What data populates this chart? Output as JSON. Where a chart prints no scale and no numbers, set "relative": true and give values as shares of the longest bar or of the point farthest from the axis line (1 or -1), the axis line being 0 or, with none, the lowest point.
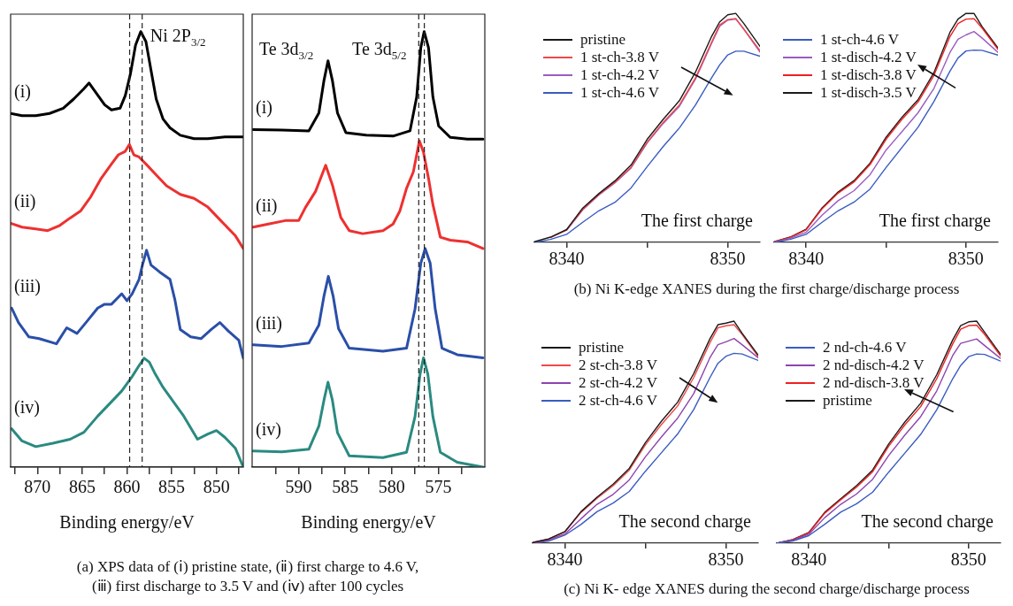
{
  "chart_data": [
    {
      "type": "line",
      "relative": true,
      "legend": false,
      "marker": "none",
      "xlabel": "Binding energy/eV",
      "xlim": [
        873,
        847
      ],
      "xticks": [
        {
          "value": 872.5,
          "label": null
        },
        870,
        {
          "value": 867.5,
          "label": null
        },
        865,
        {
          "value": 862.5,
          "label": null
        },
        860,
        {
          "value": 857.5,
          "label": null
        },
        855,
        {
          "value": 852.5,
          "label": null
        },
        850,
        {
          "value": 847.5,
          "label": null
        }
      ],
      "ref_lines": [
        {
          "axis": "x",
          "value": 859.7,
          "line_style": "dashed"
        },
        {
          "axis": "x",
          "value": 858.3,
          "line_style": "dashed"
        }
      ],
      "annotations": [
        "Ni 2P$_{3/2}$",
        "(a) XPS data of (ⅰ) pristine state, (ⅱ) first charge to 4.6 V,\n(ⅲ) first discharge to 3.5 V and (ⅳ) after 100 cycles"
      ],
      "series": [
        {
          "name": "(i)",
          "color": "#000000",
          "x": [
            873,
            871.73,
            870.19,
            868.65,
            867.12,
            865.96,
            864.81,
            864.23,
            863.65,
            862.5,
            861.73,
            860.77,
            860.19,
            859.62,
            859.04,
            858.46,
            857.88,
            857.31,
            856.73,
            855.96,
            855.19,
            854.04,
            852.5,
            850.96,
            849.04,
            847
          ],
          "values": [
            0.812,
            0.807,
            0.807,
            0.812,
            0.824,
            0.845,
            0.869,
            0.882,
            0.865,
            0.832,
            0.82,
            0.824,
            0.853,
            0.902,
            0.969,
            1,
            0.977,
            0.911,
            0.845,
            0.799,
            0.779,
            0.762,
            0.754,
            0.754,
            0.758,
            0.758
          ]
        },
        {
          "name": "(ii)",
          "color": "#ee3030",
          "x": [
            873,
            871.73,
            870.19,
            868.85,
            867.5,
            866.35,
            865.19,
            864.04,
            862.88,
            861.73,
            860.96,
            860.19,
            859.73,
            859.23,
            858.65,
            857.88,
            856.73,
            855.58,
            854.04,
            852.5,
            850.96,
            849.42,
            847.88,
            847
          ],
          "values": [
            0.56,
            0.551,
            0.547,
            0.543,
            0.555,
            0.572,
            0.588,
            0.621,
            0.663,
            0.696,
            0.717,
            0.725,
            0.741,
            0.717,
            0.712,
            0.696,
            0.671,
            0.646,
            0.626,
            0.617,
            0.597,
            0.564,
            0.531,
            0.502
          ]
        },
        {
          "name": "(iii)",
          "color": "#2a4fa8",
          "x": [
            872.88,
            872.12,
            870.96,
            869.81,
            867.88,
            866.73,
            865.58,
            864.42,
            863.27,
            862.5,
            861.73,
            860.58,
            860,
            859.42,
            858.65,
            858.27,
            857.81,
            857.31,
            856.35,
            855.19,
            854.62,
            854.04,
            852.88,
            851.73,
            850.58,
            849.62,
            848.65,
            847.5,
            847
          ],
          "values": [
            0.365,
            0.332,
            0.299,
            0.295,
            0.283,
            0.32,
            0.307,
            0.336,
            0.365,
            0.374,
            0.374,
            0.398,
            0.382,
            0.398,
            0.431,
            0.464,
            0.498,
            0.464,
            0.448,
            0.431,
            0.382,
            0.316,
            0.299,
            0.295,
            0.316,
            0.332,
            0.312,
            0.291,
            0.25
          ]
        },
        {
          "name": "(iv)",
          "color": "#2a8a80",
          "x": [
            872.88,
            871.73,
            870.19,
            868.27,
            866.35,
            864.81,
            863.27,
            861.73,
            860.58,
            859.42,
            858.65,
            858.08,
            857.5,
            856.92,
            855.96,
            854.81,
            853.65,
            852.12,
            850.96,
            850,
            849.04,
            847.88,
            847
          ],
          "values": [
            0.088,
            0.06,
            0.047,
            0.055,
            0.064,
            0.08,
            0.117,
            0.15,
            0.175,
            0.208,
            0.233,
            0.25,
            0.241,
            0.217,
            0.183,
            0.15,
            0.117,
            0.064,
            0.076,
            0.084,
            0.068,
            0.043,
            0
          ]
        }
      ]
    },
    {
      "type": "line",
      "relative": true,
      "legend": false,
      "marker": "none",
      "xlabel": "Binding energy/eV",
      "xlim": [
        595,
        570
      ],
      "xticks": [
        {
          "value": 592.5,
          "label": null
        },
        590,
        {
          "value": 587.5,
          "label": null
        },
        585,
        {
          "value": 582.5,
          "label": null
        },
        580,
        {
          "value": 577.5,
          "label": null
        },
        575,
        {
          "value": 572.5,
          "label": null
        }
      ],
      "ref_lines": [
        {
          "axis": "x",
          "value": 577.1,
          "line_style": "dashed"
        },
        {
          "axis": "x",
          "value": 576.5,
          "line_style": "dashed"
        }
      ],
      "annotations": [
        "Te 3d$_{3/2}$",
        "Te 3d$_{5/2}$"
      ],
      "series": [
        {
          "name": "(i)",
          "color": "#000000",
          "x": [
            594.89,
            591.81,
            588.91,
            587.83,
            587.28,
            586.85,
            586.38,
            585.83,
            584.93,
            582.75,
            579.86,
            578.04,
            577.32,
            576.88,
            576.52,
            576.05,
            575.58,
            574.96,
            573.7,
            571.88,
            570.2
          ],
          "values": [
            0.775,
            0.774,
            0.772,
            0.813,
            0.888,
            0.933,
            0.888,
            0.813,
            0.768,
            0.762,
            0.76,
            0.772,
            0.85,
            0.963,
            1,
            0.963,
            0.85,
            0.783,
            0.757,
            0.753,
            0.753
          ]
        },
        {
          "name": "(ii)",
          "color": "#ee3030",
          "x": [
            594.89,
            593.26,
            591.45,
            590,
            589.28,
            588.19,
            587.1,
            586.38,
            585.47,
            584.57,
            583.12,
            580.94,
            579.86,
            579.13,
            578.41,
            577.68,
            577.03,
            576.59,
            576.05,
            575.58,
            574.78,
            573.7,
            571.88,
            570.2
          ],
          "values": [
            0.551,
            0.558,
            0.566,
            0.566,
            0.596,
            0.633,
            0.693,
            0.648,
            0.573,
            0.543,
            0.536,
            0.543,
            0.558,
            0.588,
            0.64,
            0.678,
            0.749,
            0.723,
            0.663,
            0.603,
            0.528,
            0.521,
            0.517,
            0.502
          ]
        },
        {
          "name": "(iii)",
          "color": "#2a4fa8",
          "x": [
            594.89,
            591.81,
            588.91,
            587.83,
            587.28,
            586.81,
            586.3,
            585.72,
            584.57,
            580.94,
            578.41,
            577.5,
            576.88,
            576.41,
            575.87,
            575.33,
            574.6,
            572.97,
            570.2
          ],
          "values": [
            0.281,
            0.277,
            0.285,
            0.326,
            0.393,
            0.438,
            0.393,
            0.318,
            0.273,
            0.266,
            0.273,
            0.363,
            0.468,
            0.502,
            0.468,
            0.363,
            0.273,
            0.258,
            0.251
          ]
        },
        {
          "name": "(iv)",
          "color": "#2a8a80",
          "x": [
            594.89,
            591.81,
            588.91,
            587.83,
            587.28,
            586.85,
            586.38,
            585.83,
            584.57,
            580.94,
            578.41,
            577.5,
            576.96,
            576.59,
            576.12,
            575.58,
            574.78,
            572.97,
            570.2
          ],
          "values": [
            0.037,
            0.035,
            0.041,
            0.094,
            0.154,
            0.195,
            0.154,
            0.079,
            0.026,
            0.022,
            0.034,
            0.116,
            0.213,
            0.251,
            0.213,
            0.116,
            0.034,
            0.011,
            0
          ]
        }
      ]
    },
    {
      "type": "line",
      "relative": true,
      "legend": "top left",
      "marker": "none",
      "xlim": [
        8338,
        8352
      ],
      "xticks": [
        8340,
        {
          "value": 8345,
          "label": null
        },
        8350
      ],
      "x": [
        8338,
        8339,
        8340,
        8341,
        8342,
        8343,
        8344,
        8345,
        8346,
        8347,
        8348,
        8349,
        8349.5,
        8350,
        8350.5,
        8351,
        8352
      ],
      "annotations": [
        "The first charge",
        "(b) Ni K-edge XANES during the first charge/discharge process"
      ],
      "series": [
        {
          "name": "pristine",
          "color": "#1a1a1a",
          "values": [
            0.003,
            0.023,
            0.056,
            0.15,
            0.213,
            0.269,
            0.338,
            0.45,
            0.538,
            0.619,
            0.744,
            0.9,
            0.963,
            0.994,
            1,
            0.956,
            0.856
          ]
        },
        {
          "name": "1 st-ch-3.8 V",
          "color": "#f04848",
          "values": [
            null,
            0.021,
            0.054,
            0.144,
            0.209,
            0.263,
            0.328,
            0.438,
            0.525,
            0.6,
            0.719,
            0.875,
            0.95,
            0.973,
            0.978,
            0.931,
            0.838
          ]
        },
        {
          "name": "1 st-ch-4.2 V",
          "color": "#9b5cc0",
          "values": [
            null,
            null,
            0.053,
            0.142,
            0.207,
            0.26,
            0.325,
            0.434,
            0.52,
            0.594,
            0.713,
            0.869,
            0.944,
            0.971,
            0.975,
            0.931,
            0.831
          ]
        },
        {
          "name": "1 st-ch-4.6 V",
          "color": "#3a5cc0",
          "values": [
            0,
            0.013,
            0.035,
            0.088,
            0.138,
            0.175,
            0.238,
            0.331,
            0.419,
            0.5,
            0.6,
            0.719,
            0.775,
            0.819,
            0.835,
            0.835,
            0.813
          ]
        }
      ]
    },
    {
      "type": "line",
      "relative": true,
      "legend": "top left",
      "marker": "none",
      "xlim": [
        8338,
        8352
      ],
      "xticks": [
        8340,
        {
          "value": 8345,
          "label": null
        },
        8350
      ],
      "x": [
        8338,
        8339,
        8340,
        8341,
        8342,
        8343,
        8344,
        8345,
        8346,
        8347,
        8348,
        8349,
        8349.5,
        8350,
        8350.5,
        8351,
        8352
      ],
      "annotations": [
        "The first charge"
      ],
      "series": [
        {
          "name": "1 st-ch-4.6 V",
          "color": "#3a5cc0",
          "values": [
            0,
            0.013,
            0.035,
            0.088,
            0.138,
            0.176,
            0.233,
            0.327,
            0.415,
            0.503,
            0.616,
            0.748,
            0.805,
            0.836,
            0.84,
            0.839,
            0.818
          ]
        },
        {
          "name": "1 st-disch-4.2 V",
          "color": "#9b5cc0",
          "values": [
            0,
            0.018,
            0.044,
            0.119,
            0.182,
            0.226,
            0.296,
            0.403,
            0.484,
            0.566,
            0.673,
            0.83,
            0.887,
            0.906,
            0.921,
            0.893,
            0.83
          ]
        },
        {
          "name": "1 st-disch-3.8 V",
          "color": "#f02020",
          "values": [
            0.003,
            0.022,
            0.055,
            0.147,
            0.215,
            0.264,
            0.34,
            0.45,
            0.538,
            0.613,
            0.73,
            0.899,
            0.956,
            0.975,
            0.977,
            0.937,
            0.843
          ]
        },
        {
          "name": "1 st-disch-3.5 V",
          "color": "#1a1a1a",
          "values": [
            0.003,
            0.023,
            0.057,
            0.151,
            0.22,
            0.27,
            0.346,
            0.459,
            0.547,
            0.623,
            0.742,
            0.918,
            0.975,
            1,
            1,
            0.943,
            0.849
          ]
        }
      ]
    },
    {
      "type": "line",
      "relative": true,
      "legend": "top left",
      "marker": "none",
      "xlim": [
        8338,
        8352
      ],
      "xticks": [
        8340,
        {
          "value": 8345,
          "label": null
        },
        8350
      ],
      "x": [
        8338,
        8339,
        8340,
        8341,
        8342,
        8343,
        8344,
        8345,
        8346,
        8347,
        8348,
        8349,
        8349.5,
        8350,
        8350.5,
        8351,
        8352
      ],
      "annotations": [
        "The second charge",
        "(c) Ni K- edge XANES during the second charge/discharge process"
      ],
      "series": [
        {
          "name": "pristine",
          "color": "#1a1a1a",
          "values": [
            0.003,
            0.019,
            0.052,
            0.142,
            0.207,
            0.266,
            0.337,
            0.453,
            0.55,
            0.635,
            0.764,
            0.92,
            0.984,
            0.991,
            1,
            0.946,
            0.847
          ]
        },
        {
          "name": "2 st-ch-3.8 V",
          "color": "#f04848",
          "values": [
            0.003,
            0.018,
            0.05,
            0.138,
            0.202,
            0.259,
            0.329,
            0.443,
            0.535,
            0.618,
            0.746,
            0.902,
            0.97,
            0.979,
            0.984,
            0.94,
            0.84
          ]
        },
        {
          "name": "2 st-ch-4.2 V",
          "color": "#8e44b0",
          "values": [
            0,
            0.016,
            0.041,
            0.11,
            0.175,
            0.22,
            0.285,
            0.389,
            0.479,
            0.563,
            0.674,
            0.835,
            0.894,
            0.907,
            0.922,
            0.894,
            0.835
          ]
        },
        {
          "name": "2 st-ch-4.6 V",
          "color": "#3a5cc0",
          "values": [
            0,
            0.01,
            0.036,
            0.084,
            0.142,
            0.181,
            0.233,
            0.324,
            0.408,
            0.492,
            0.602,
            0.745,
            0.81,
            0.842,
            0.855,
            0.852,
            0.823
          ]
        }
      ]
    },
    {
      "type": "line",
      "relative": true,
      "legend": "top left",
      "marker": "none",
      "xlim": [
        8338,
        8352
      ],
      "xticks": [
        8340,
        {
          "value": 8345,
          "label": null
        },
        8350
      ],
      "x": [
        8338,
        8339,
        8340,
        8341,
        8342,
        8343,
        8344,
        8345,
        8346,
        8347,
        8348,
        8349,
        8349.5,
        8350,
        8350.5,
        8351,
        8352
      ],
      "annotations": [
        "The second charge"
      ],
      "series": [
        {
          "name": "2 nd-ch-4.6 V",
          "color": "#3a5cc0",
          "values": [
            0,
            0.01,
            0.034,
            0.085,
            0.14,
            0.178,
            0.23,
            0.32,
            0.405,
            0.49,
            0.6,
            0.74,
            0.8,
            0.84,
            0.852,
            0.85,
            0.82
          ]
        },
        {
          "name": "2 nd-disch-4.2 V",
          "color": "#8e44b0",
          "values": [
            0,
            0.013,
            0.04,
            0.115,
            0.175,
            0.222,
            0.288,
            0.395,
            0.486,
            0.57,
            0.685,
            0.845,
            0.9,
            0.91,
            0.92,
            0.89,
            0.832
          ]
        },
        {
          "name": "2 nd-disch-3.8 V",
          "color": "#f02020",
          "values": [
            0,
            0.015,
            0.046,
            0.135,
            0.195,
            0.253,
            0.322,
            0.437,
            0.532,
            0.615,
            0.74,
            0.897,
            0.964,
            0.98,
            0.982,
            0.94,
            0.843
          ]
        },
        {
          "name": "pristime",
          "color": "#1a1a1a",
          "values": [
            0,
            0.016,
            0.048,
            0.139,
            0.2,
            0.26,
            0.33,
            0.447,
            0.545,
            0.63,
            0.758,
            0.915,
            0.98,
            0.997,
            1,
            0.95,
            0.85
          ]
        }
      ]
    }
  ]
}
